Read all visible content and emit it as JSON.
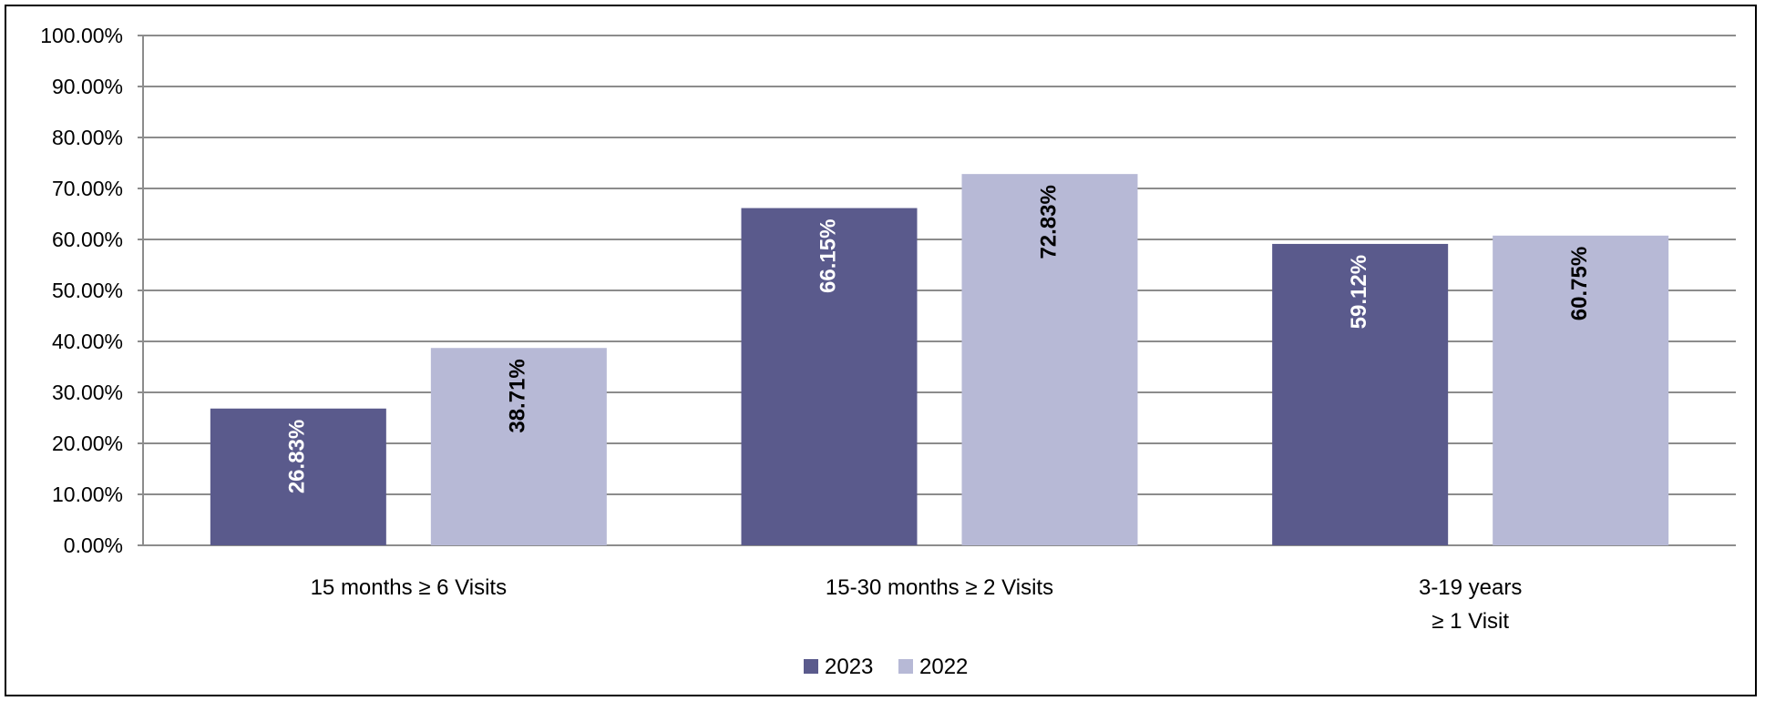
{
  "chart_data": {
    "type": "bar",
    "categories": [
      [
        "15 months ≥ 6 Visits"
      ],
      [
        "15-30 months ≥ 2 Visits"
      ],
      [
        "3-19 years",
        "≥ 1 Visit"
      ]
    ],
    "series": [
      {
        "name": "2023",
        "values": [
          26.83,
          66.15,
          59.12
        ],
        "labels": [
          "26.83%",
          "66.15%",
          "59.12%"
        ],
        "color": "#5a5a8c",
        "label_color": "#ffffff"
      },
      {
        "name": "2022",
        "values": [
          38.71,
          72.83,
          60.75
        ],
        "labels": [
          "38.71%",
          "72.83%",
          "60.75%"
        ],
        "color": "#b7b9d6",
        "label_color": "#000000"
      }
    ],
    "y_ticks": [
      "0.00%",
      "10.00%",
      "20.00%",
      "30.00%",
      "40.00%",
      "50.00%",
      "60.00%",
      "70.00%",
      "80.00%",
      "90.00%",
      "100.00%"
    ],
    "ylim": [
      0,
      100
    ],
    "grid": true,
    "legend_position": "bottom-center",
    "title": "",
    "xlabel": "",
    "ylabel": ""
  }
}
